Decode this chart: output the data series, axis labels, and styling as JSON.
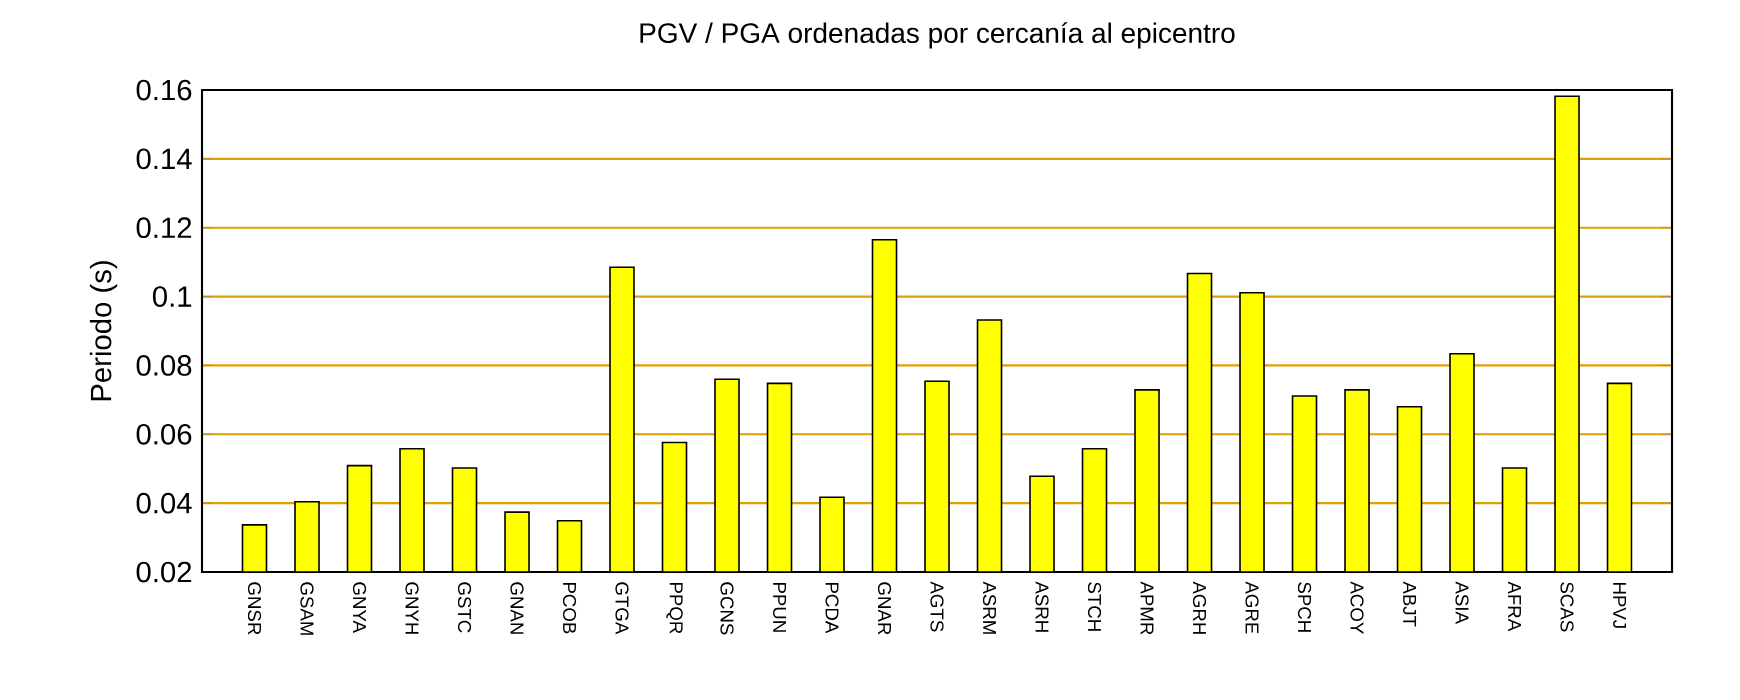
{
  "chart_data": {
    "type": "bar",
    "title": "PGV / PGA ordenadas por cercanía al epicentro",
    "ylabel": "Periodo (s)",
    "categories": [
      "GNSR",
      "GSAM",
      "GNYA",
      "GNYH",
      "GSTC",
      "GNAN",
      "PCOB",
      "GTGA",
      "PPQR",
      "GCNS",
      "PPUN",
      "PCDA",
      "GNAR",
      "AGTS",
      "ASRM",
      "ASRH",
      "STCH",
      "APMR",
      "AGRH",
      "AGRE",
      "SPCH",
      "ACOY",
      "ABJT",
      "ASIA",
      "AFRA",
      "SCAS",
      "HPVJ"
    ],
    "values": [
      0.0337,
      0.0404,
      0.0509,
      0.0558,
      0.0502,
      0.0374,
      0.0349,
      0.1085,
      0.0576,
      0.076,
      0.0748,
      0.0417,
      0.1165,
      0.0754,
      0.0932,
      0.0478,
      0.0558,
      0.0729,
      0.1067,
      0.1011,
      0.0711,
      0.0729,
      0.068,
      0.0834,
      0.0502,
      0.1582,
      0.0748
    ],
    "color": "#ffff00",
    "ylim": [
      0.02,
      0.16
    ],
    "yticks": [
      0.02,
      0.04,
      0.06,
      0.08,
      0.1,
      0.12,
      0.14,
      0.16
    ],
    "grid": "y"
  }
}
